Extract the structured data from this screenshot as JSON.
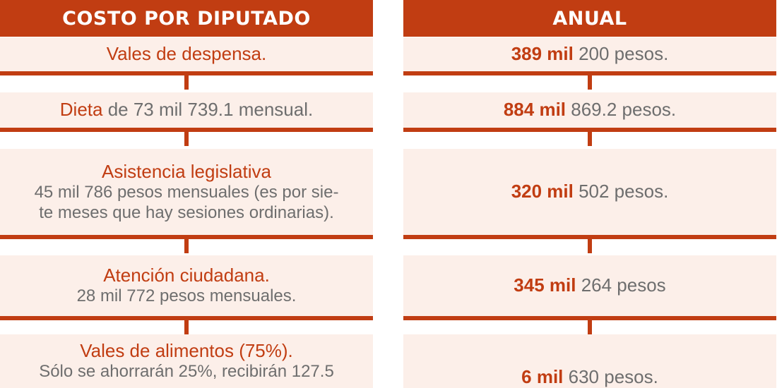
{
  "colors": {
    "accent": "#c13d12",
    "cell_bg": "#fcefe9",
    "text_gray": "#6e6e6e"
  },
  "left": {
    "header": "COSTO POR DIPUTADO",
    "rows": [
      {
        "title": "Vales de despensa."
      },
      {
        "title": "Dieta",
        "desc": " de 73 mil 739.1 mensual."
      },
      {
        "title": "Asistencia legislativa",
        "desc_lines": [
          "45 mil 786 pesos mensuales (es por sie-",
          "te meses que hay sesiones ordinarias)."
        ]
      },
      {
        "title": "Atención ciudadana.",
        "desc_lines": [
          "28 mil 772 pesos mensuales."
        ]
      },
      {
        "title": "Vales de alimentos (75%).",
        "desc_lines": [
          "Sólo se ahorrarán 25%, recibirán 127.5"
        ]
      }
    ]
  },
  "right": {
    "header": "ANUAL",
    "rows": [
      {
        "bold": "389 mil",
        "rest": " 200 pesos."
      },
      {
        "bold": "884 mil",
        "rest": " 869.2 pesos."
      },
      {
        "bold": "320 mil",
        "rest": " 502 pesos."
      },
      {
        "bold": "345 mil",
        "rest": " 264 pesos"
      },
      {
        "bold": "6 mil",
        "rest": " 630 pesos."
      }
    ]
  }
}
